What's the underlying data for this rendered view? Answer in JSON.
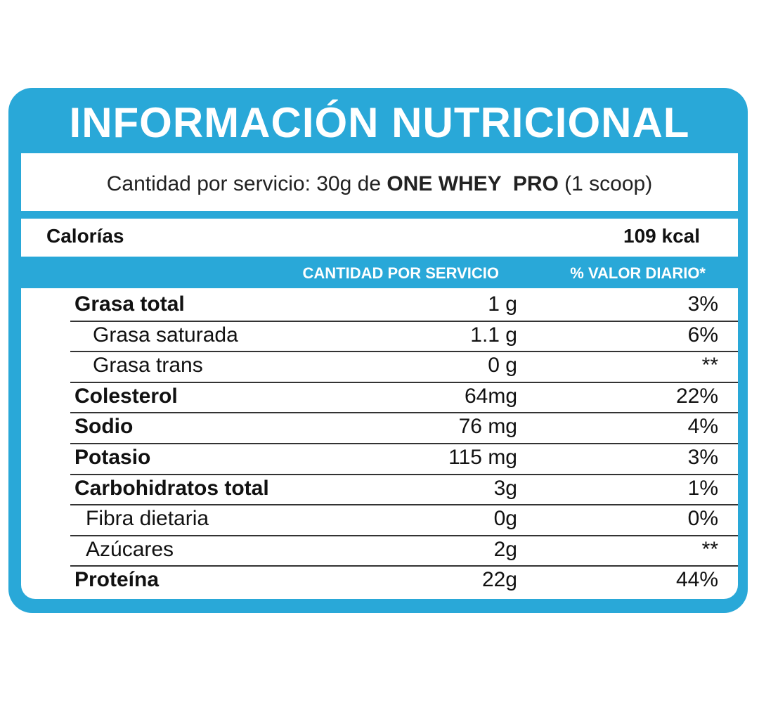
{
  "header": {
    "title": "INFORMACIÓN NUTRICIONAL"
  },
  "serving": {
    "prefix": "Cantidad por servicio: 30g de",
    "product": "ONE WHEY  PRO",
    "suffix": "(1 scoop)"
  },
  "calories": {
    "label": "Calorías",
    "value": "109 kcal"
  },
  "table": {
    "headers": [
      "CANTIDAD POR SERVICIO",
      "% VALOR DIARIO*"
    ],
    "rows": [
      [
        "Grasa total",
        "1 g",
        "3%"
      ],
      [
        "Grasa saturada",
        "1.1 g",
        "6%"
      ],
      [
        "Grasa trans",
        "0 g",
        "**"
      ],
      [
        "Colesterol",
        "64mg",
        "22%"
      ],
      [
        "Sodio",
        "76 mg",
        "4%"
      ],
      [
        "Potasio",
        "115 mg",
        "3%"
      ],
      [
        "Carbohidratos total",
        "3g",
        "1%"
      ],
      [
        "Fibra dietaria",
        "0g",
        "0%"
      ],
      [
        "Azúcares",
        "2g",
        "**"
      ],
      [
        "Proteína",
        "22g",
        "44%"
      ]
    ]
  }
}
